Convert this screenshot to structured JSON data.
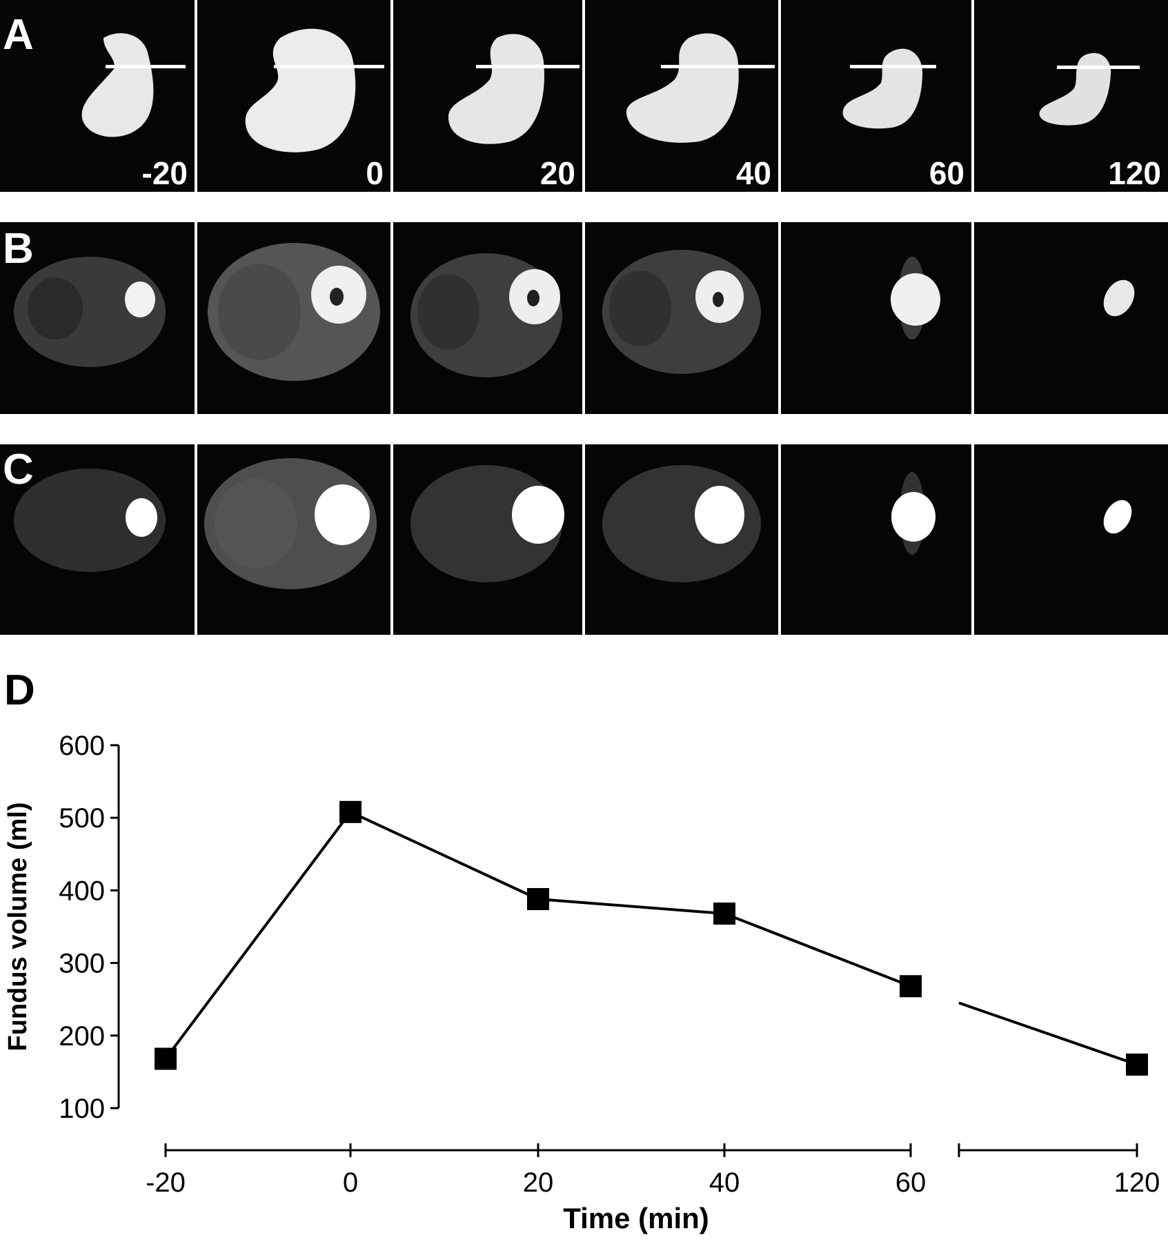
{
  "panels": {
    "a": {
      "letter": "A",
      "time_labels": [
        "-20",
        "0",
        "20",
        "40",
        "60",
        "120"
      ]
    },
    "b": {
      "letter": "B"
    },
    "c": {
      "letter": "C"
    },
    "d": {
      "letter": "D"
    }
  },
  "colors": {
    "background": "#ffffff",
    "image_bg": "#050505",
    "line": "#000000",
    "marker": "#000000"
  },
  "chart_data": {
    "type": "line",
    "title": "",
    "xlabel": "Time (min)",
    "ylabel": "Fundus volume (ml)",
    "x": [
      -20,
      0,
      20,
      40,
      60,
      120
    ],
    "x_tick_labels": [
      "-20",
      "0",
      "20",
      "40",
      "60",
      "120"
    ],
    "y_tick_labels": [
      "100",
      "200",
      "300",
      "400",
      "500",
      "600"
    ],
    "ylim": [
      100,
      600
    ],
    "axis_break": "between 60 and 120",
    "series": [
      {
        "values": [
          168,
          508,
          388,
          368,
          268,
          160
        ]
      }
    ],
    "grid": false,
    "legend": "none"
  }
}
